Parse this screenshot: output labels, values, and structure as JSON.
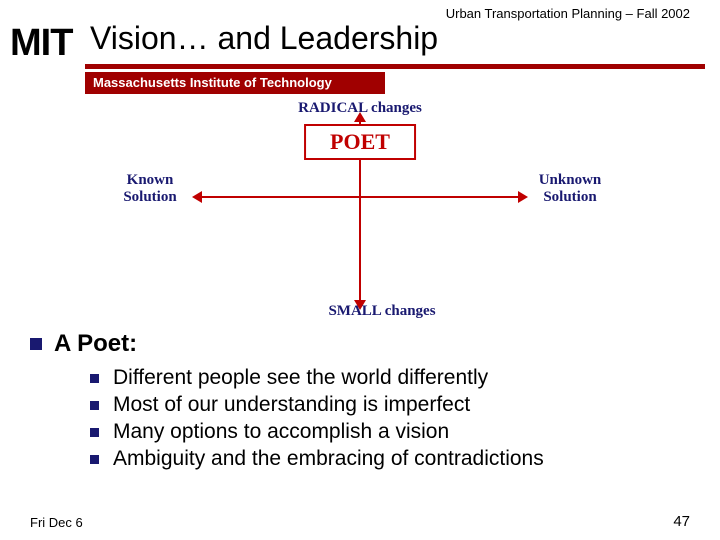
{
  "course_header": "Urban Transportation Planning – Fall 2002",
  "logo": "MIT",
  "title": "Vision… and Leadership",
  "subtitle": "Massachusetts Institute of Technology",
  "diagram": {
    "top_label": "RADICAL changes",
    "bottom_label": "SMALL changes",
    "left_label_line1": "Known",
    "left_label_line2": "Solution",
    "right_label_line1": "Unknown",
    "right_label_line2": "Solution",
    "box_label": "POET",
    "arrow_color": "#c00000",
    "label_color": "#191970"
  },
  "bullets": {
    "heading": "A Poet:",
    "items": [
      "Different people see the world differently",
      "Most of our understanding is imperfect",
      "Many options to accomplish a vision",
      "Ambiguity and the embracing of contradictions"
    ]
  },
  "footer": {
    "date": "Fri Dec 6",
    "page": "47"
  },
  "colors": {
    "accent": "#a00000",
    "bullet": "#191970"
  }
}
